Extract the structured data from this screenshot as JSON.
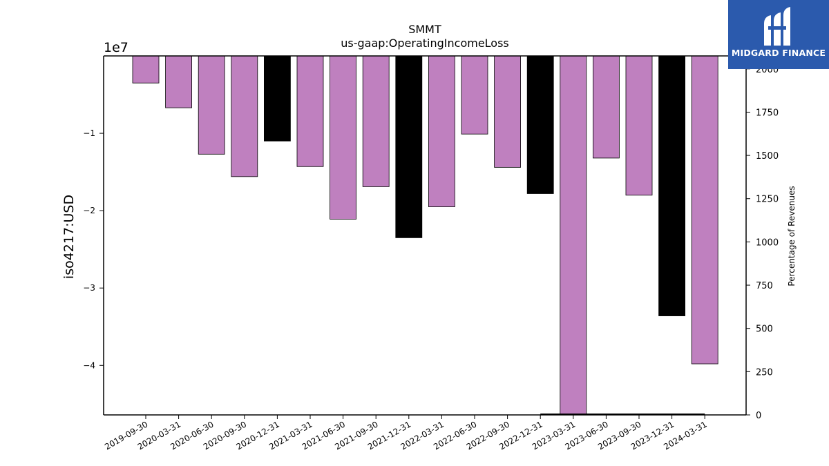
{
  "chart_data": {
    "type": "bar",
    "title": "SMMT",
    "subtitle": "us-gaap:OperatingIncomeLoss",
    "ylabel": "iso4217:USD",
    "y_offset_label": "1e7",
    "y2label": "Percentage of Revenues",
    "categories": [
      "2019-09-30",
      "2020-03-31",
      "2020-06-30",
      "2020-09-30",
      "2020-12-31",
      "2021-03-31",
      "2021-06-30",
      "2021-09-30",
      "2021-12-31",
      "2022-03-31",
      "2022-06-30",
      "2022-09-30",
      "2022-12-31",
      "2023-03-31",
      "2023-06-30",
      "2023-09-30",
      "2023-12-31",
      "2024-03-31"
    ],
    "values": [
      -3500000,
      -6700000,
      -12700000,
      -15600000,
      -11000000,
      -14300000,
      -21100000,
      -16900000,
      -23500000,
      -19500000,
      -10100000,
      -14400000,
      -17800000,
      -46400000,
      -13200000,
      -18000000,
      -33600000,
      -39800000
    ],
    "bar_colors": [
      "#bf80bf",
      "#bf80bf",
      "#bf80bf",
      "#bf80bf",
      "#000000",
      "#bf80bf",
      "#bf80bf",
      "#bf80bf",
      "#000000",
      "#bf80bf",
      "#bf80bf",
      "#bf80bf",
      "#000000",
      "#bf80bf",
      "#bf80bf",
      "#bf80bf",
      "#000000",
      "#bf80bf"
    ],
    "ylim": [
      -46400000,
      0
    ],
    "y_ticks": [
      -10000000,
      -20000000,
      -30000000,
      -40000000
    ],
    "y_tick_labels": [
      "−1",
      "−2",
      "−3",
      "−4"
    ],
    "y2lim": [
      0,
      2075
    ],
    "y2_ticks": [
      0,
      250,
      500,
      750,
      1000,
      1250,
      1500,
      1750,
      2000
    ],
    "y2_tick_labels": [
      "0",
      "250",
      "500",
      "750",
      "1000",
      "1250",
      "1500",
      "1750",
      "2000"
    ],
    "secondary_line": {
      "x_from": "2022-12-31",
      "x_to": "2024-03-31",
      "value": 0
    }
  },
  "branding": {
    "logo_text": "MIDGARD FINANCE",
    "logo_color": "#2b5aad"
  }
}
